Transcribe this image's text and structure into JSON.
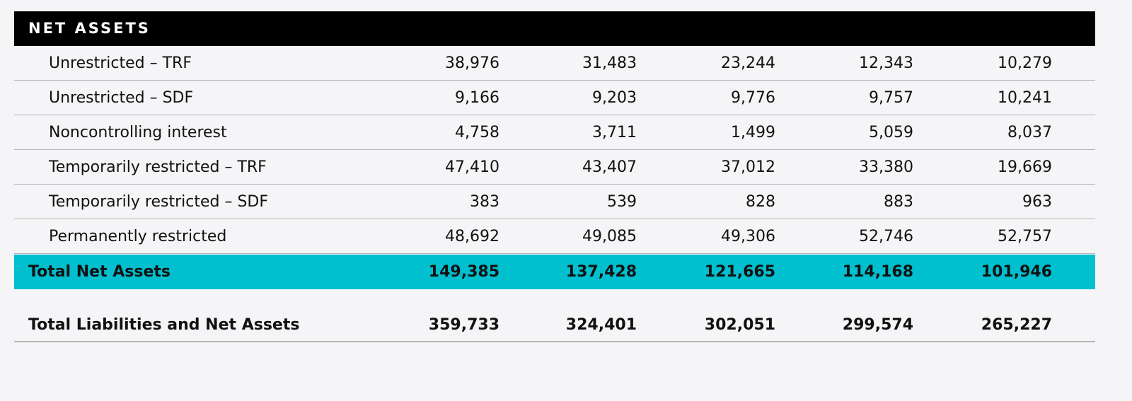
{
  "section": {
    "title": "NET ASSETS"
  },
  "table": {
    "rows": [
      [
        "Unrestricted – TRF",
        "38,976",
        "31,483",
        "23,244",
        "12,343",
        "10,279"
      ],
      [
        "Unrestricted – SDF",
        "9,166",
        "9,203",
        "9,776",
        "9,757",
        "10,241"
      ],
      [
        "Noncontrolling interest",
        "4,758",
        "3,711",
        "1,499",
        "5,059",
        "8,037"
      ],
      [
        "Temporarily restricted – TRF",
        "47,410",
        "43,407",
        "37,012",
        "33,380",
        "19,669"
      ],
      [
        "Temporarily restricted – SDF",
        "383",
        "539",
        "828",
        "883",
        "963"
      ],
      [
        "Permanently restricted",
        "48,692",
        "49,085",
        "49,306",
        "52,746",
        "52,757"
      ]
    ],
    "total": [
      "Total Net Assets",
      "149,385",
      "137,428",
      "121,665",
      "114,168",
      "101,946"
    ],
    "grand_total": [
      "Total Liabilities and Net Assets",
      "359,733",
      "324,401",
      "302,051",
      "299,574",
      "265,227"
    ]
  }
}
